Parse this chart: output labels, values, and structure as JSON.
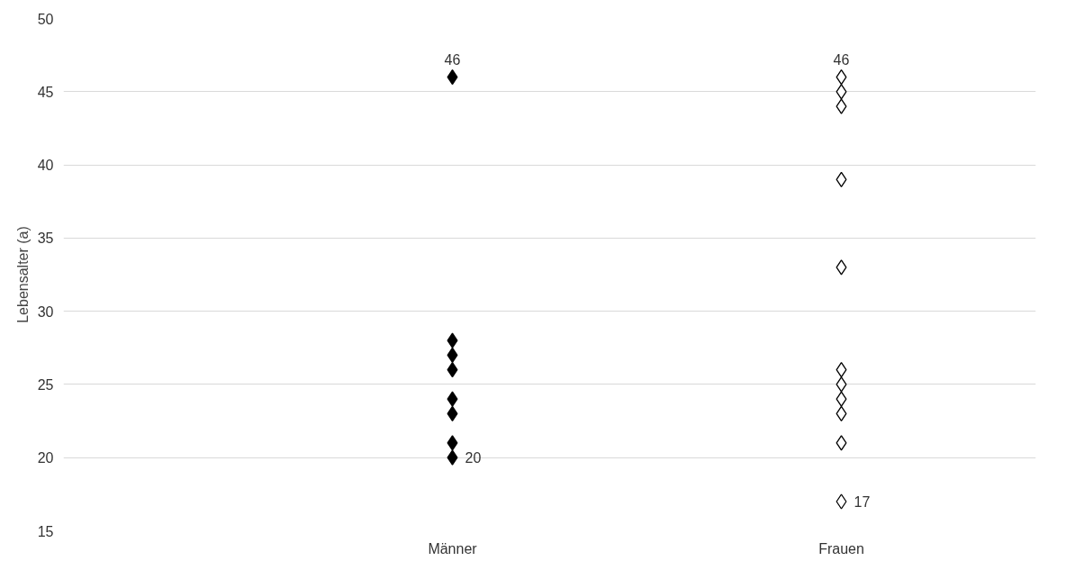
{
  "chart_data": {
    "type": "scatter",
    "ylabel": "Lebensalter (a)",
    "categories": [
      "Männer",
      "Frauen"
    ],
    "ylim": [
      15,
      50
    ],
    "yticks": [
      15,
      20,
      25,
      30,
      35,
      40,
      45,
      50
    ],
    "grid": "y",
    "marker": "diamond",
    "series": [
      {
        "color": "#000000",
        "x": [
          "Männer",
          "Männer",
          "Männer",
          "Männer",
          "Männer",
          "Männer",
          "Männer",
          "Männer"
        ],
        "values": [
          46,
          28,
          27,
          26,
          24,
          23,
          21,
          20
        ],
        "value_labels": [
          "46",
          null,
          null,
          null,
          null,
          null,
          null,
          "20"
        ]
      },
      {
        "color": "#ffffff",
        "x": [
          "Frauen",
          "Frauen",
          "Frauen",
          "Frauen",
          "Frauen",
          "Frauen",
          "Frauen",
          "Frauen",
          "Frauen",
          "Frauen",
          "Frauen"
        ],
        "values": [
          46,
          45,
          44,
          39,
          33,
          26,
          25,
          24,
          23,
          21,
          17
        ],
        "value_labels": [
          "46",
          null,
          null,
          null,
          null,
          null,
          null,
          null,
          null,
          null,
          "17"
        ]
      }
    ]
  }
}
